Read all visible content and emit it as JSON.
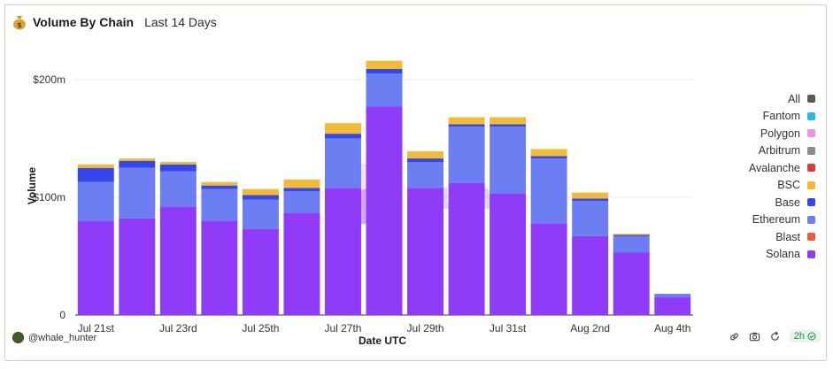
{
  "header": {
    "title": "Volume By Chain",
    "subtitle": "Last 14 Days"
  },
  "footer": {
    "username": "@whale_hunter",
    "age": "2h"
  },
  "colors": {
    "Solana": "#8f3bf7",
    "Ethereum": "#6b7ff3",
    "Base": "#3347ea",
    "BSC": "#f2bb33",
    "Blast": "#ec5a3a",
    "Avalanche": "#e23a3a",
    "Arbitrum": "#8a8a8a",
    "Polygon": "#f28ee4",
    "Fantom": "#27b7e6",
    "All": "#5a5a5a"
  },
  "legend": [
    "All",
    "Fantom",
    "Polygon",
    "Arbitrum",
    "Avalanche",
    "BSC",
    "Base",
    "Ethereum",
    "Blast",
    "Solana"
  ],
  "chart_data": {
    "type": "bar",
    "stacked": true,
    "xlabel": "Date UTC",
    "ylabel": "Volume",
    "ylim": [
      0,
      230
    ],
    "yticks": [
      0,
      100,
      200
    ],
    "ytick_labels": [
      "0",
      "$100m",
      "$200m"
    ],
    "categories": [
      "Jul 21st",
      "Jul 22nd",
      "Jul 23rd",
      "Jul 24th",
      "Jul 25th",
      "Jul 26th",
      "Jul 27th",
      "Jul 28th",
      "Jul 29th",
      "Jul 30th",
      "Jul 31st",
      "Aug 1st",
      "Aug 2nd",
      "Aug 3rd",
      "Aug 4th"
    ],
    "xtick_labels": [
      "Jul 21st",
      "",
      "Jul 23rd",
      "",
      "Jul 25th",
      "",
      "Jul 27th",
      "",
      "Jul 29th",
      "",
      "Jul 31st",
      "",
      "Aug 2nd",
      "",
      "Aug 4th"
    ],
    "series": [
      {
        "name": "Solana",
        "values": [
          80,
          82,
          92,
          80,
          73,
          87,
          108,
          177,
          108,
          112,
          103,
          78,
          67,
          53,
          15
        ]
      },
      {
        "name": "Ethereum",
        "values": [
          33,
          43,
          30,
          27,
          25,
          18,
          42,
          28,
          22,
          48,
          57,
          55,
          30,
          14,
          3
        ]
      },
      {
        "name": "Base",
        "values": [
          12,
          6,
          6,
          3,
          4,
          3,
          4,
          4,
          3,
          2,
          2,
          2,
          2,
          1,
          0
        ]
      },
      {
        "name": "BSC",
        "values": [
          3,
          2,
          2,
          3,
          5,
          7,
          9,
          7,
          6,
          6,
          6,
          6,
          5,
          1,
          0
        ]
      }
    ]
  }
}
